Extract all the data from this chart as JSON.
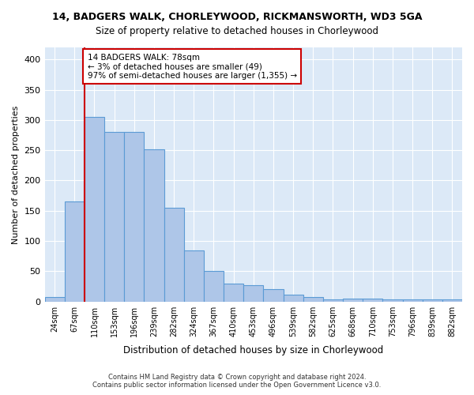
{
  "title_line1": "14, BADGERS WALK, CHORLEYWOOD, RICKMANSWORTH, WD3 5GA",
  "title_line2": "Size of property relative to detached houses in Chorleywood",
  "xlabel": "Distribution of detached houses by size in Chorleywood",
  "ylabel": "Number of detached properties",
  "categories": [
    "24sqm",
    "67sqm",
    "110sqm",
    "153sqm",
    "196sqm",
    "239sqm",
    "282sqm",
    "324sqm",
    "367sqm",
    "410sqm",
    "453sqm",
    "496sqm",
    "539sqm",
    "582sqm",
    "625sqm",
    "668sqm",
    "710sqm",
    "753sqm",
    "796sqm",
    "839sqm",
    "882sqm"
  ],
  "bar_values": [
    8,
    165,
    305,
    280,
    280,
    252,
    155,
    85,
    50,
    30,
    27,
    21,
    11,
    8,
    4,
    5,
    5,
    4,
    3,
    4,
    3
  ],
  "bar_color": "#aec6e8",
  "bar_edge_color": "#5b9bd5",
  "vline_x": 1.5,
  "vline_color": "#cc0000",
  "annotation_text": "14 BADGERS WALK: 78sqm\n← 3% of detached houses are smaller (49)\n97% of semi-detached houses are larger (1,355) →",
  "annotation_box_color": "#ffffff",
  "annotation_box_edge": "#cc0000",
  "ylim": [
    0,
    420
  ],
  "yticks": [
    0,
    50,
    100,
    150,
    200,
    250,
    300,
    350,
    400
  ],
  "background_color": "#dce9f7",
  "grid_color": "#ffffff",
  "footer1": "Contains HM Land Registry data © Crown copyright and database right 2024.",
  "footer2": "Contains public sector information licensed under the Open Government Licence v3.0."
}
